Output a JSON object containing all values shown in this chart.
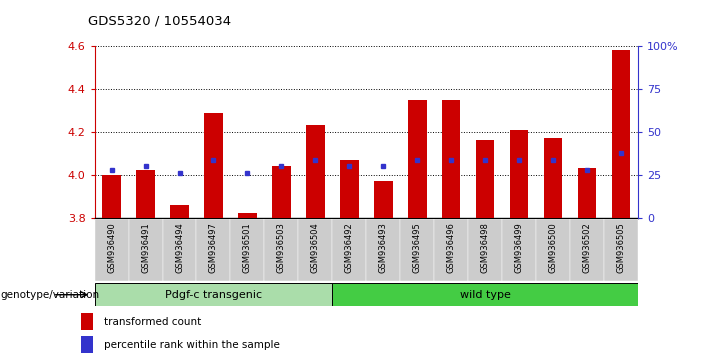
{
  "title": "GDS5320 / 10554034",
  "samples": [
    "GSM936490",
    "GSM936491",
    "GSM936494",
    "GSM936497",
    "GSM936501",
    "GSM936503",
    "GSM936504",
    "GSM936492",
    "GSM936493",
    "GSM936495",
    "GSM936496",
    "GSM936498",
    "GSM936499",
    "GSM936500",
    "GSM936502",
    "GSM936505"
  ],
  "bar_values": [
    4.0,
    4.02,
    3.86,
    4.29,
    3.82,
    4.04,
    4.23,
    4.07,
    3.97,
    4.35,
    4.35,
    4.16,
    4.21,
    4.17,
    4.03,
    4.58
  ],
  "blue_dot_values": [
    4.02,
    4.04,
    4.01,
    4.07,
    4.01,
    4.04,
    4.07,
    4.04,
    4.04,
    4.07,
    4.07,
    4.07,
    4.07,
    4.07,
    4.02,
    4.1
  ],
  "bar_bottom": 3.8,
  "ylim": [
    3.8,
    4.6
  ],
  "yticks": [
    3.8,
    4.0,
    4.2,
    4.4,
    4.6
  ],
  "right_yticks": [
    0,
    25,
    50,
    75,
    100
  ],
  "right_ylim_labels": [
    "0",
    "25",
    "50",
    "75",
    "100%"
  ],
  "group1_label": "Pdgf-c transgenic",
  "group2_label": "wild type",
  "group1_count": 7,
  "group2_count": 9,
  "bar_color": "#cc0000",
  "blue_dot_color": "#3333cc",
  "group1_color": "#aaddaa",
  "group2_color": "#44cc44",
  "xlabel": "genotype/variation",
  "legend_bar_label": "transformed count",
  "legend_dot_label": "percentile rank within the sample",
  "bar_color_legend": "#cc0000",
  "blue_dot_color_legend": "#3333cc",
  "bar_width": 0.55,
  "tick_bg_color": "#cccccc"
}
